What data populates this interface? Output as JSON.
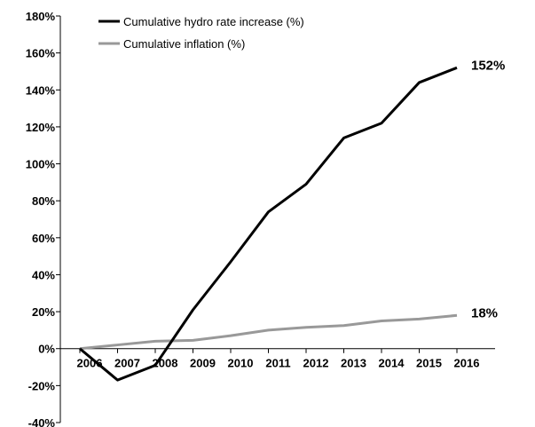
{
  "chart_data": {
    "type": "line",
    "x": [
      "2006",
      "2007",
      "2008",
      "2009",
      "2010",
      "2011",
      "2012",
      "2013",
      "2014",
      "2015",
      "2016"
    ],
    "series": [
      {
        "name": "Cumulative hydro rate increase (%)",
        "color": "#000000",
        "values": [
          0,
          -17,
          -9,
          21,
          47,
          74,
          89,
          114,
          122,
          144,
          152
        ],
        "end_label": "152%"
      },
      {
        "name": "Cumulative inflation (%)",
        "color": "#999999",
        "values": [
          0,
          2,
          4,
          4.5,
          7,
          10,
          11.5,
          12.5,
          15,
          16,
          18
        ],
        "end_label": "18%"
      }
    ],
    "y_ticks": [
      "180%",
      "160%",
      "140%",
      "120%",
      "100%",
      "80%",
      "60%",
      "40%",
      "20%",
      "0%",
      "-20%",
      "-40%"
    ],
    "ylim": [
      -40,
      180
    ],
    "grid": false,
    "legend": "top-left"
  }
}
